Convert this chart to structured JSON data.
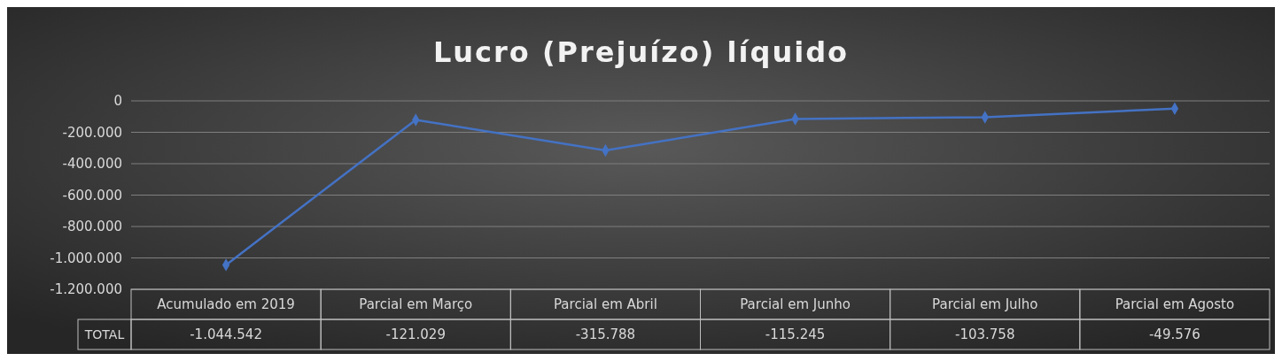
{
  "chart_data": {
    "type": "line",
    "title": "Lucro (Prejuízo) líquido",
    "categories": [
      "Acumulado em 2019",
      "Parcial em Março",
      "Parcial em Abril",
      "Parcial em Junho",
      "Parcial em Julho",
      "Parcial em Agosto"
    ],
    "series": [
      {
        "name": "TOTAL",
        "color": "#4472c4",
        "values": [
          -1044542,
          -121029,
          -315788,
          -115245,
          -103758,
          -49576
        ],
        "value_labels": [
          "-1.044.542",
          "-121.029",
          "-315.788",
          "-115.245",
          "-103.758",
          "-49.576"
        ]
      }
    ],
    "ylim": [
      -1200000,
      0
    ],
    "yticks": [
      {
        "value": 0,
        "label": "0"
      },
      {
        "value": -200000,
        "label": "-200.000"
      },
      {
        "value": -400000,
        "label": "-400.000"
      },
      {
        "value": -600000,
        "label": "-600.000"
      },
      {
        "value": -800000,
        "label": "-800.000"
      },
      {
        "value": -1000000,
        "label": "-1.000.000"
      },
      {
        "value": -1200000,
        "label": "-1.200.000"
      }
    ],
    "grid": true,
    "marker": "diamond",
    "line_style": "solid",
    "legend": false
  }
}
